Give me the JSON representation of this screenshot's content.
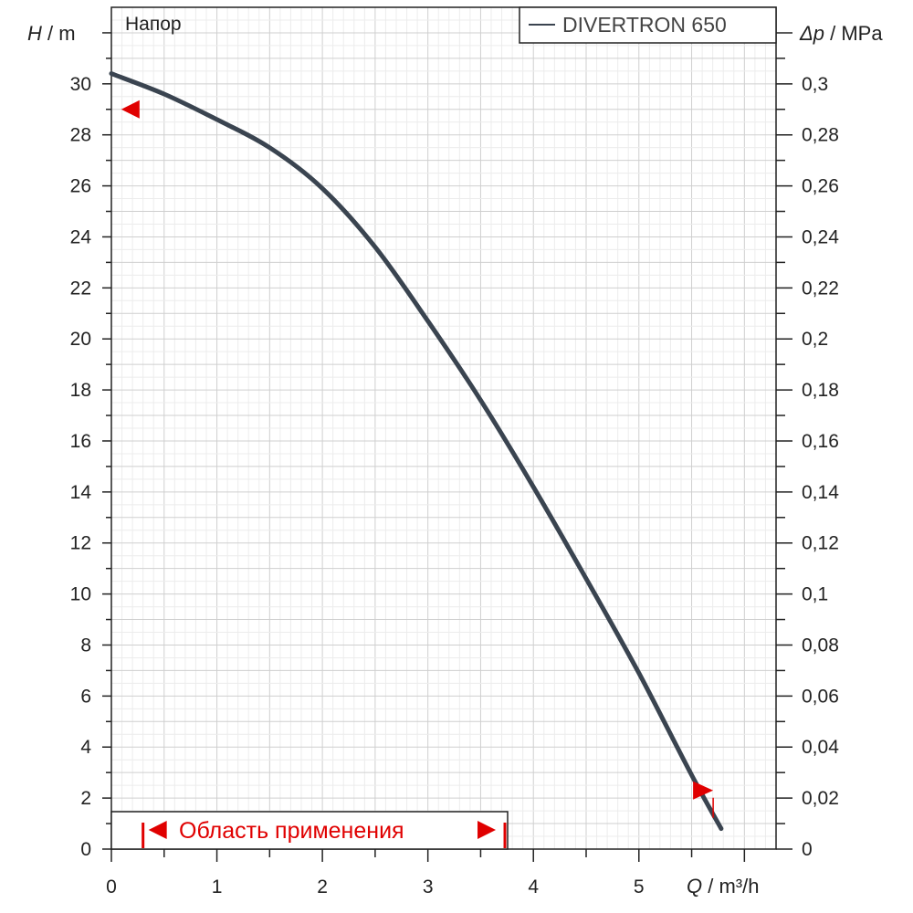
{
  "chart_data": {
    "type": "line",
    "title": "Напор",
    "xlabel": {
      "symbol": "Q",
      "unit": " / m³/h"
    },
    "ylabel": {
      "symbol": "H",
      "unit": " / m"
    },
    "y2label": {
      "symbol": "Δp",
      "unit": " / MPa"
    },
    "xlim": [
      0,
      6.3
    ],
    "ylim": [
      0,
      33
    ],
    "y2lim": [
      0,
      0.33
    ],
    "x_ticks": [
      "0",
      "1",
      "2",
      "3",
      "4",
      "5"
    ],
    "y_ticks": [
      "0",
      "2",
      "4",
      "6",
      "8",
      "10",
      "12",
      "14",
      "16",
      "18",
      "20",
      "22",
      "24",
      "26",
      "28",
      "30"
    ],
    "y2_ticks": [
      "0",
      "0,02",
      "0,04",
      "0,06",
      "0,08",
      "0,1",
      "0,12",
      "0,14",
      "0,16",
      "0,18",
      "0,2",
      "0,22",
      "0,24",
      "0,26",
      "0,28",
      "0,3"
    ],
    "grid": true,
    "legend_position": "top-right",
    "series": [
      {
        "name": "DIVERTRON 650",
        "color": "#3a4450",
        "x": [
          0,
          0.5,
          1,
          1.5,
          2,
          2.5,
          3,
          3.5,
          4,
          4.5,
          5,
          5.5,
          5.78
        ],
        "y": [
          30.4,
          29.6,
          28.6,
          27.5,
          25.9,
          23.6,
          20.7,
          17.6,
          14.2,
          10.6,
          6.9,
          2.9,
          0.8
        ]
      }
    ],
    "operating_range": {
      "label": "Область применения",
      "x_start": 0.3,
      "x_end": 3.73,
      "color": "#e00000"
    },
    "markers": [
      {
        "x": 0.18,
        "y": 29.0,
        "direction": "left",
        "color": "#e00000"
      },
      {
        "x": 5.6,
        "y": 2.3,
        "direction": "right",
        "color": "#e00000"
      }
    ]
  }
}
